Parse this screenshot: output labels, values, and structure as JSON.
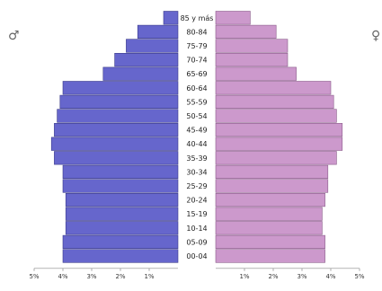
{
  "chart_data": {
    "type": "bar",
    "orientation": "horizontal",
    "pyramid": true,
    "categories": [
      "00-04",
      "05-09",
      "10-14",
      "15-19",
      "20-24",
      "25-29",
      "30-34",
      "35-39",
      "40-44",
      "45-49",
      "50-54",
      "55-59",
      "60-64",
      "65-69",
      "70-74",
      "75-79",
      "80-84",
      "85 y más"
    ],
    "series": [
      {
        "symbol": "♂",
        "side": "left",
        "color": "#6666cc",
        "values": [
          4.0,
          4.0,
          3.9,
          3.9,
          3.9,
          4.0,
          4.0,
          4.3,
          4.4,
          4.3,
          4.2,
          4.1,
          4.0,
          2.6,
          2.2,
          1.8,
          1.4,
          0.5
        ]
      },
      {
        "symbol": "♀",
        "side": "right",
        "color": "#cc99cc",
        "values": [
          3.8,
          3.8,
          3.7,
          3.7,
          3.8,
          3.9,
          3.9,
          4.2,
          4.4,
          4.4,
          4.2,
          4.1,
          4.0,
          2.8,
          2.5,
          2.5,
          2.1,
          1.2
        ]
      }
    ],
    "xlim": [
      0,
      5
    ],
    "x_ticks": [
      5,
      4,
      3,
      2,
      1,
      0
    ],
    "x_tick_labels_left": [
      "5%",
      "4%",
      "3%",
      "2%",
      "1%"
    ],
    "x_tick_labels_right": [
      "1%",
      "2%",
      "3%",
      "4%",
      "5%"
    ],
    "grid": false,
    "legend": "none"
  }
}
